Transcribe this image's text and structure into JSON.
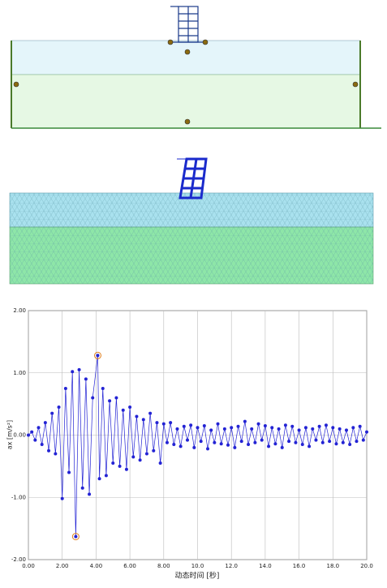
{
  "chart_data": {
    "type": "line",
    "xlabel": "动态时间 [秒]",
    "ylabel": "ax [m/s²]",
    "x": [
      0,
      0.2,
      0.4,
      0.6,
      0.8,
      1.0,
      1.2,
      1.4,
      1.6,
      1.8,
      2.0,
      2.2,
      2.4,
      2.6,
      2.8,
      3.0,
      3.2,
      3.4,
      3.6,
      3.8,
      4.1,
      4.2,
      4.4,
      4.6,
      4.8,
      5.0,
      5.2,
      5.4,
      5.6,
      5.8,
      6.0,
      6.2,
      6.4,
      6.6,
      6.8,
      7.0,
      7.2,
      7.4,
      7.6,
      7.8,
      8.0,
      8.2,
      8.4,
      8.6,
      8.8,
      9.0,
      9.2,
      9.4,
      9.6,
      9.8,
      10.0,
      10.2,
      10.4,
      10.6,
      10.8,
      11.0,
      11.2,
      11.4,
      11.6,
      11.8,
      12.0,
      12.2,
      12.4,
      12.6,
      12.8,
      13.0,
      13.2,
      13.4,
      13.6,
      13.8,
      14.0,
      14.2,
      14.4,
      14.6,
      14.8,
      15.0,
      15.2,
      15.4,
      15.6,
      15.8,
      16.0,
      16.2,
      16.4,
      16.6,
      16.8,
      17.0,
      17.2,
      17.4,
      17.6,
      17.8,
      18.0,
      18.2,
      18.4,
      18.6,
      18.8,
      19.0,
      19.2,
      19.4,
      19.6,
      19.8,
      20.0
    ],
    "series": [
      {
        "color": "#2323d4",
        "values": [
          0.0,
          0.05,
          -0.08,
          0.12,
          -0.15,
          0.2,
          -0.25,
          0.35,
          -0.3,
          0.45,
          -1.02,
          0.75,
          -0.6,
          1.02,
          -1.63,
          1.05,
          -0.85,
          0.9,
          -0.95,
          0.6,
          1.28,
          -0.7,
          0.75,
          -0.65,
          0.55,
          -0.45,
          0.6,
          -0.5,
          0.4,
          -0.55,
          0.45,
          -0.35,
          0.3,
          -0.4,
          0.25,
          -0.3,
          0.35,
          -0.25,
          0.2,
          -0.45,
          0.18,
          -0.12,
          0.2,
          -0.15,
          0.1,
          -0.18,
          0.14,
          -0.08,
          0.16,
          -0.2,
          0.12,
          -0.1,
          0.15,
          -0.22,
          0.08,
          -0.12,
          0.18,
          -0.14,
          0.1,
          -0.16,
          0.12,
          -0.2,
          0.14,
          -0.1,
          0.22,
          -0.15,
          0.1,
          -0.12,
          0.18,
          -0.08,
          0.15,
          -0.18,
          0.12,
          -0.14,
          0.1,
          -0.2,
          0.16,
          -0.1,
          0.14,
          -0.12,
          0.08,
          -0.15,
          0.12,
          -0.18,
          0.1,
          -0.08,
          0.14,
          -0.12,
          0.16,
          -0.1,
          0.12,
          -0.14,
          0.1,
          -0.12,
          0.08,
          -0.15,
          0.12,
          -0.1,
          0.14,
          -0.08,
          0.05
        ]
      }
    ],
    "xlim": [
      0,
      20
    ],
    "ylim": [
      -2,
      2
    ],
    "xticks": [
      {
        "value": 0,
        "label": "0.00"
      },
      {
        "value": 2,
        "label": "2.00"
      },
      {
        "value": 4,
        "label": "4.00"
      },
      {
        "value": 6,
        "label": "6.00"
      },
      {
        "value": 8,
        "label": "8.00"
      },
      {
        "value": 10,
        "label": "10.0"
      },
      {
        "value": 12,
        "label": "12.0"
      },
      {
        "value": 14,
        "label": "14.0"
      },
      {
        "value": 16,
        "label": "16.0"
      },
      {
        "value": 18,
        "label": "18.0"
      },
      {
        "value": 20,
        "label": "20.0"
      }
    ],
    "yticks": [
      {
        "value": -2,
        "label": "-2.00"
      },
      {
        "value": -1,
        "label": "-1.00"
      },
      {
        "value": 0,
        "label": "0.00"
      },
      {
        "value": 1,
        "label": "1.00"
      },
      {
        "value": 2,
        "label": "2.00"
      }
    ],
    "grid": true
  }
}
